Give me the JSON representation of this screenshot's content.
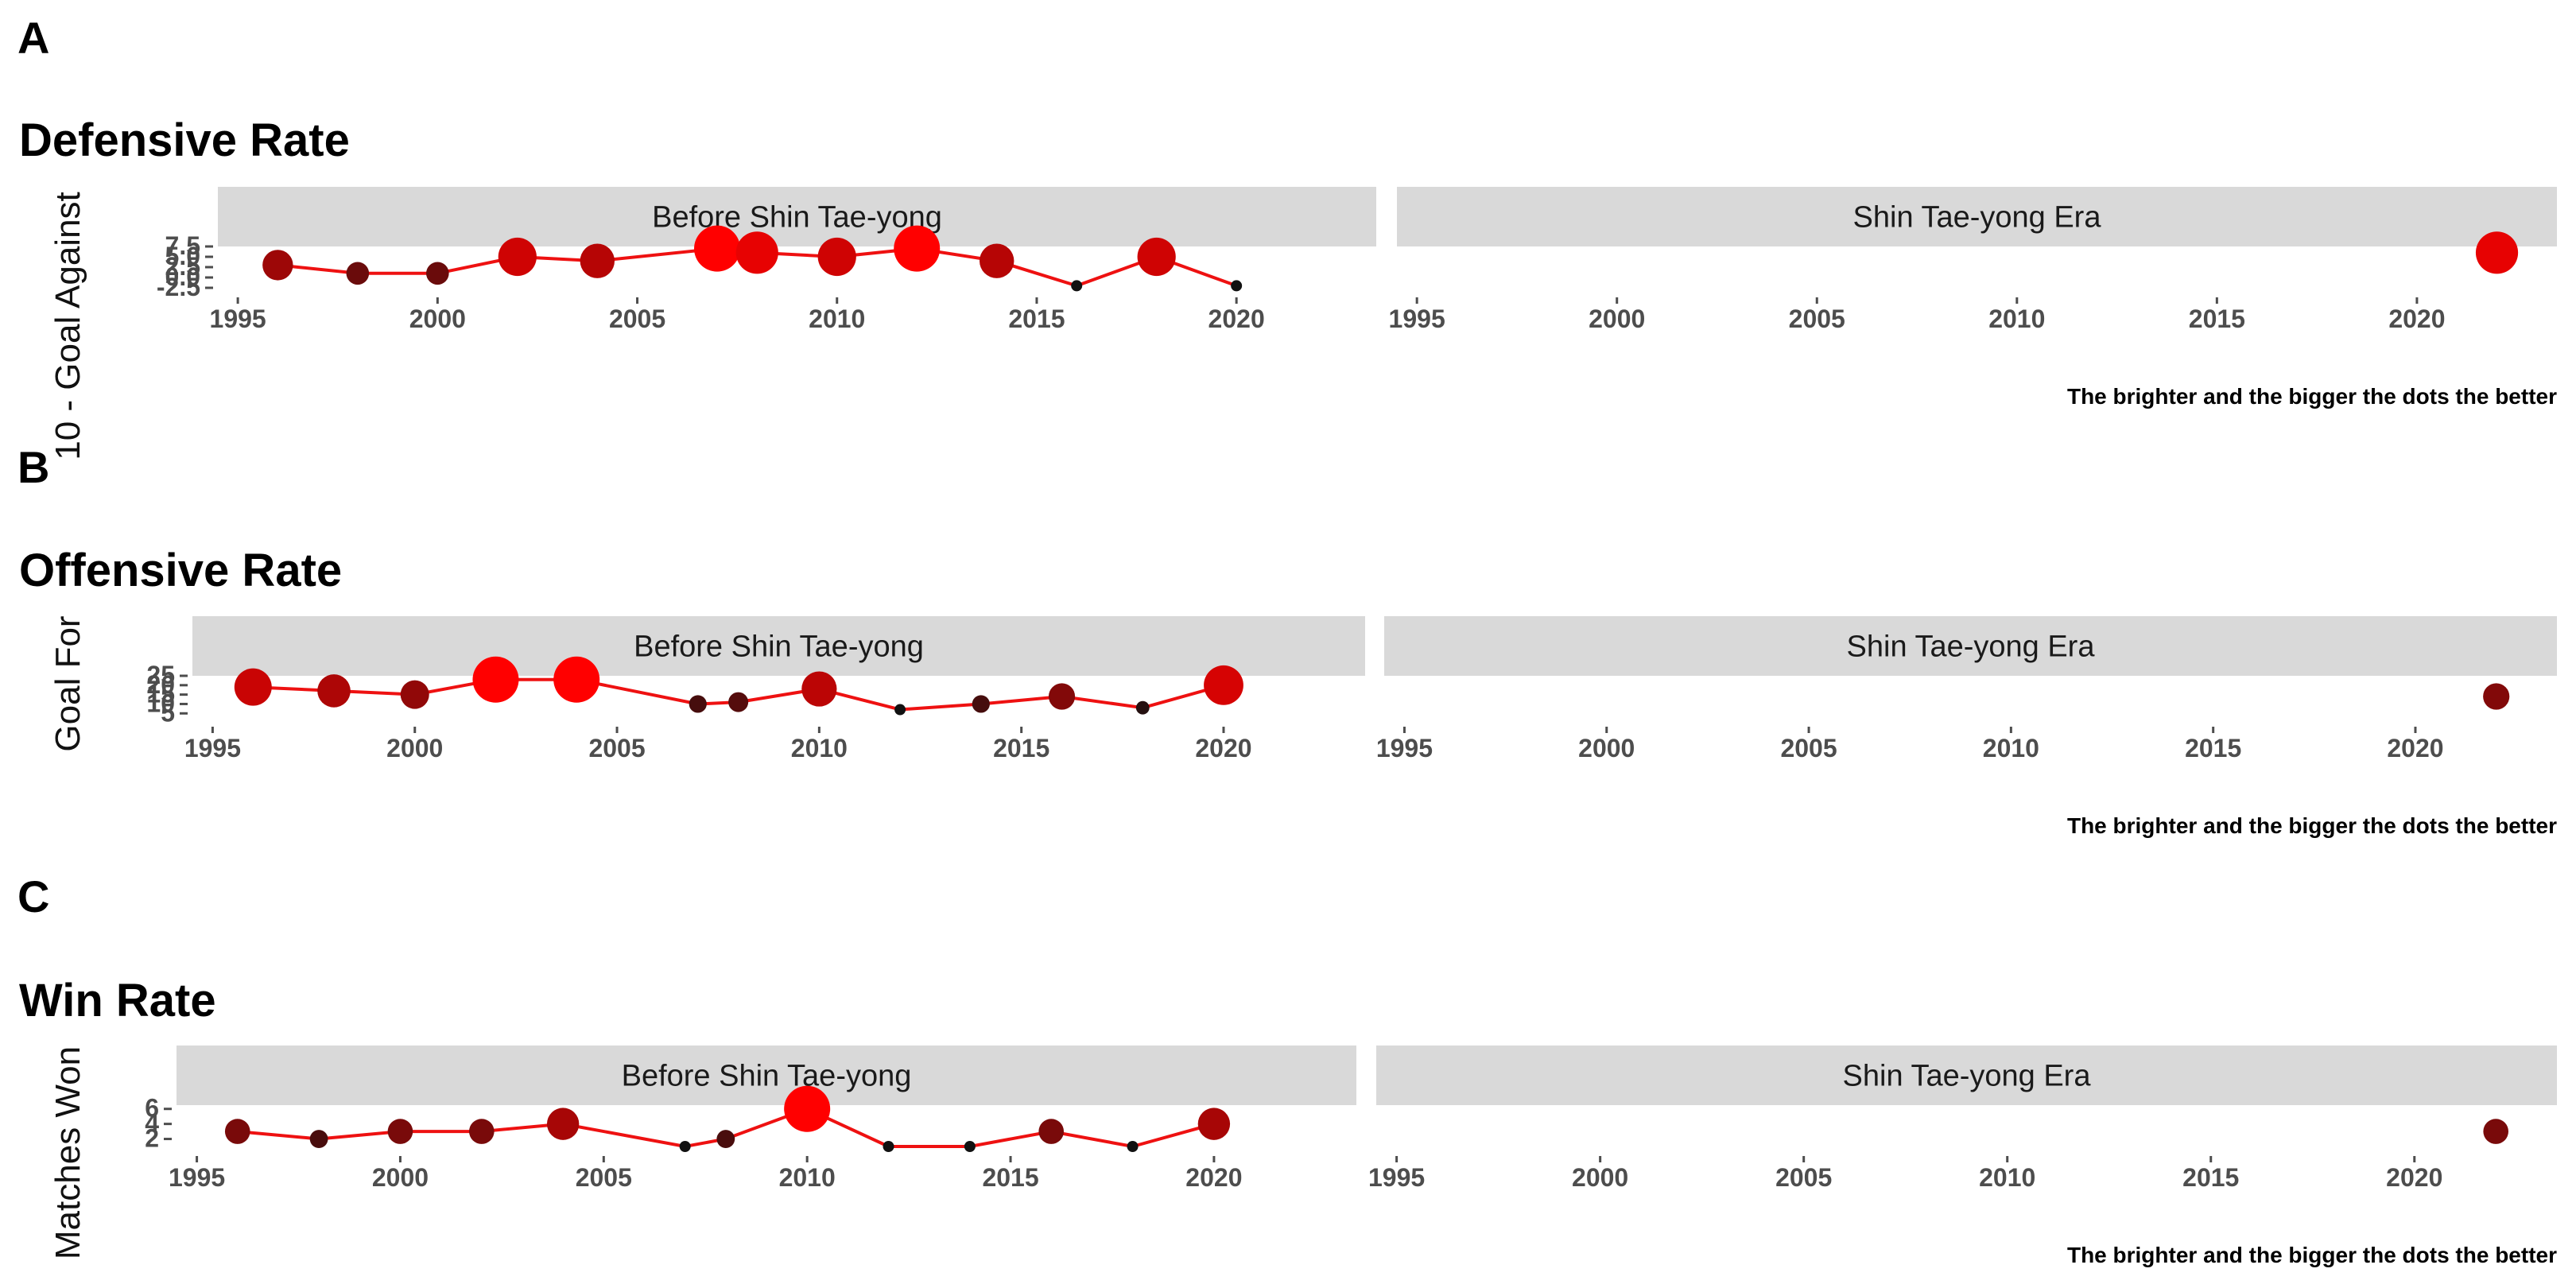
{
  "note": "",
  "chart_data": [
    {
      "type": "line",
      "panel_label": "A",
      "title": "Defensive Rate",
      "ylabel": "10 - Goal Against",
      "ylim": [
        -2.5,
        7.5
      ],
      "y_ticks": [
        "-2.5",
        "0.0",
        "2.5",
        "5.0",
        "7.5"
      ],
      "x_ticks": [
        "1995",
        "2000",
        "2005",
        "2010",
        "2015",
        "2020"
      ],
      "xlim": [
        1994.5,
        2023.5
      ],
      "caption": "The brighter and the bigger the dots the better",
      "facets": [
        {
          "name": "Before Shin Tae-yong",
          "points": [
            {
              "x": 1996,
              "y": 3
            },
            {
              "x": 1998,
              "y": 1
            },
            {
              "x": 2000,
              "y": 1
            },
            {
              "x": 2002,
              "y": 5
            },
            {
              "x": 2004,
              "y": 4
            },
            {
              "x": 2007,
              "y": 7
            },
            {
              "x": 2008,
              "y": 6
            },
            {
              "x": 2010,
              "y": 5
            },
            {
              "x": 2012,
              "y": 7
            },
            {
              "x": 2014,
              "y": 4
            },
            {
              "x": 2016,
              "y": -2
            },
            {
              "x": 2018,
              "y": 5
            },
            {
              "x": 2020,
              "y": -2
            }
          ]
        },
        {
          "name": "Shin Tae-yong Era",
          "points": [
            {
              "x": 2022,
              "y": 6
            }
          ]
        }
      ]
    },
    {
      "type": "line",
      "panel_label": "B",
      "title": "Offensive Rate",
      "ylabel": "Goal For",
      "ylim": [
        3,
        25
      ],
      "y_ticks": [
        "5",
        "10",
        "15",
        "20",
        "25"
      ],
      "x_ticks": [
        "1995",
        "2000",
        "2005",
        "2010",
        "2015",
        "2020"
      ],
      "xlim": [
        1994.5,
        2023.5
      ],
      "caption": "The brighter and the bigger the dots the better",
      "facets": [
        {
          "name": "Before Shin Tae-yong",
          "points": [
            {
              "x": 1996,
              "y": 19
            },
            {
              "x": 1998,
              "y": 17
            },
            {
              "x": 2000,
              "y": 15
            },
            {
              "x": 2002,
              "y": 23
            },
            {
              "x": 2004,
              "y": 23
            },
            {
              "x": 2007,
              "y": 10
            },
            {
              "x": 2008,
              "y": 11
            },
            {
              "x": 2010,
              "y": 18
            },
            {
              "x": 2012,
              "y": 7
            },
            {
              "x": 2014,
              "y": 10
            },
            {
              "x": 2016,
              "y": 14
            },
            {
              "x": 2018,
              "y": 8
            },
            {
              "x": 2020,
              "y": 20
            }
          ]
        },
        {
          "name": "Shin Tae-yong Era",
          "points": [
            {
              "x": 2022,
              "y": 14
            }
          ]
        }
      ]
    },
    {
      "type": "line",
      "panel_label": "C",
      "title": "Win Rate",
      "ylabel": "Matches Won",
      "ylim": [
        1,
        6.5
      ],
      "y_ticks": [
        "2",
        "4",
        "6"
      ],
      "x_ticks": [
        "1995",
        "2000",
        "2005",
        "2010",
        "2015",
        "2020"
      ],
      "xlim": [
        1994.5,
        2023.5
      ],
      "caption": "The brighter and the bigger the dots the better",
      "facets": [
        {
          "name": "Before Shin Tae-yong",
          "points": [
            {
              "x": 1996,
              "y": 3
            },
            {
              "x": 1998,
              "y": 2
            },
            {
              "x": 2000,
              "y": 3
            },
            {
              "x": 2002,
              "y": 3
            },
            {
              "x": 2004,
              "y": 4
            },
            {
              "x": 2007,
              "y": 1
            },
            {
              "x": 2008,
              "y": 2
            },
            {
              "x": 2010,
              "y": 6
            },
            {
              "x": 2012,
              "y": 1
            },
            {
              "x": 2014,
              "y": 1
            },
            {
              "x": 2016,
              "y": 3
            },
            {
              "x": 2018,
              "y": 1
            },
            {
              "x": 2020,
              "y": 4
            }
          ]
        },
        {
          "name": "Shin Tae-yong Era",
          "points": [
            {
              "x": 2022,
              "y": 3
            }
          ]
        }
      ]
    }
  ],
  "colors": {
    "line": "#ee1111",
    "strip": "#d9d9d9",
    "dot_low": "#111111",
    "dot_high": "#ff0000"
  }
}
